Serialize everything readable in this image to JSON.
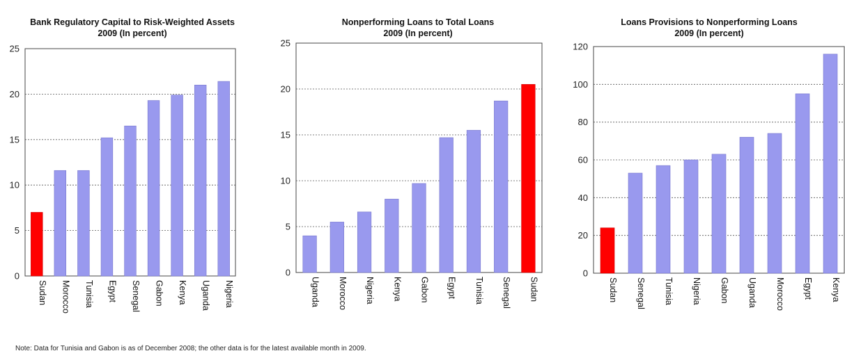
{
  "chart_data": [
    {
      "type": "bar",
      "title": "Bank Regulatory Capital to Risk-Weighted Assets",
      "subtitle": "2009 (In percent)",
      "categories": [
        "Sudan",
        "Morocco",
        "Tunisia",
        "Egypt",
        "Senegal",
        "Gabon",
        "Kenya",
        "Uganda",
        "Nigeria"
      ],
      "values": [
        7.0,
        11.6,
        11.6,
        15.2,
        16.5,
        19.3,
        19.9,
        21.0,
        21.4
      ],
      "highlight": "Sudan",
      "ylim": [
        0,
        25
      ],
      "yticks": [
        0,
        5,
        10,
        15,
        20,
        25
      ],
      "grid": true,
      "colors": {
        "bar": "#9999ee",
        "highlight": "#ff0000"
      }
    },
    {
      "type": "bar",
      "title": "Nonperforming Loans to Total Loans",
      "subtitle": "2009 (In percent)",
      "categories": [
        "Uganda",
        "Morocco",
        "Nigeria",
        "Kenya",
        "Gabon",
        "Egypt",
        "Tunisia",
        "Senegal",
        "Sudan"
      ],
      "values": [
        4.0,
        5.5,
        6.6,
        8.0,
        9.7,
        14.7,
        15.5,
        18.7,
        20.5
      ],
      "highlight": "Sudan",
      "ylim": [
        0,
        25
      ],
      "yticks": [
        0,
        5,
        10,
        15,
        20,
        25
      ],
      "grid": true,
      "colors": {
        "bar": "#9999ee",
        "highlight": "#ff0000"
      }
    },
    {
      "type": "bar",
      "title": "Loans Provisions to Nonperforming Loans",
      "subtitle": "2009 (In percent)",
      "categories": [
        "Sudan",
        "Senegal",
        "Tunisia",
        "Nigeria",
        "Gabon",
        "Uganda",
        "Morocco",
        "Egypt",
        "Kenya"
      ],
      "values": [
        24,
        53,
        57,
        60,
        63,
        72,
        74,
        95,
        116
      ],
      "highlight": "Sudan",
      "ylim": [
        0,
        120
      ],
      "yticks": [
        0,
        20,
        40,
        60,
        80,
        100,
        120
      ],
      "grid": true,
      "colors": {
        "bar": "#9999ee",
        "highlight": "#ff0000"
      }
    }
  ],
  "note": "Note: Data for Tunisia and Gabon is as of December 2008; the other data is for the latest available month in 2009."
}
